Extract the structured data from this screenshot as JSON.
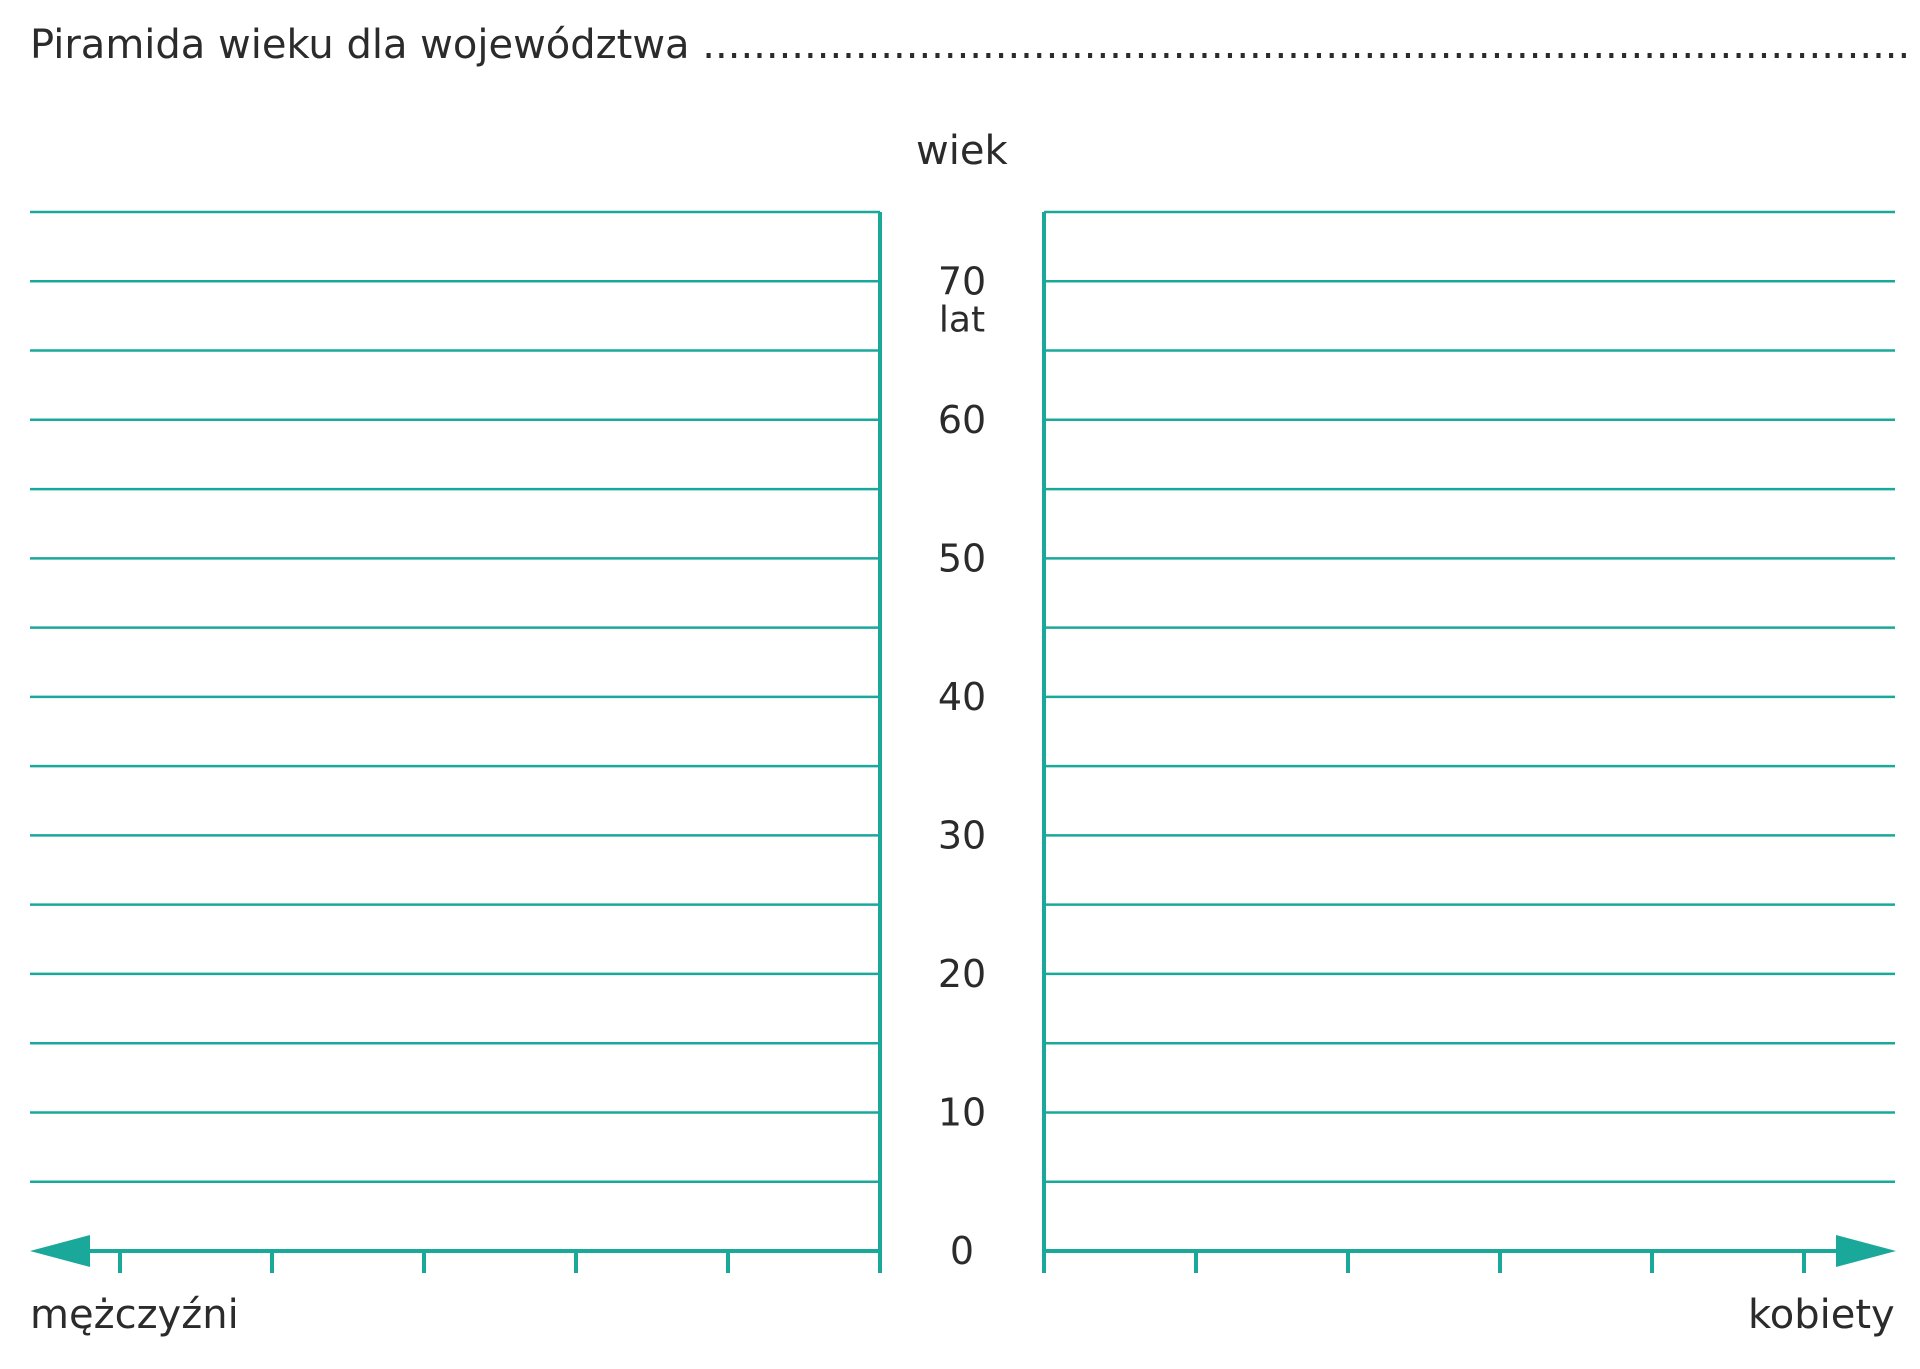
{
  "title": "Piramida wieku dla województwa",
  "title_blank": "...............................................................................................",
  "accent_color": "#1aa89a",
  "chart_data": {
    "type": "bar",
    "title": "Piramida wieku dla województwa",
    "ylabel": "wiek",
    "y_unit": "lat",
    "y_unit_at": 70,
    "ylim": [
      0,
      75
    ],
    "y_ticks": [
      "0",
      "10",
      "20",
      "30",
      "40",
      "50",
      "60",
      "70"
    ],
    "y_tick_values": [
      0,
      10,
      20,
      30,
      40,
      50,
      60,
      70
    ],
    "age_band_width": 5,
    "left_label": "mężczyźni",
    "right_label": "kobiety",
    "x_ticks_per_side": 5,
    "grid": true,
    "series": []
  }
}
